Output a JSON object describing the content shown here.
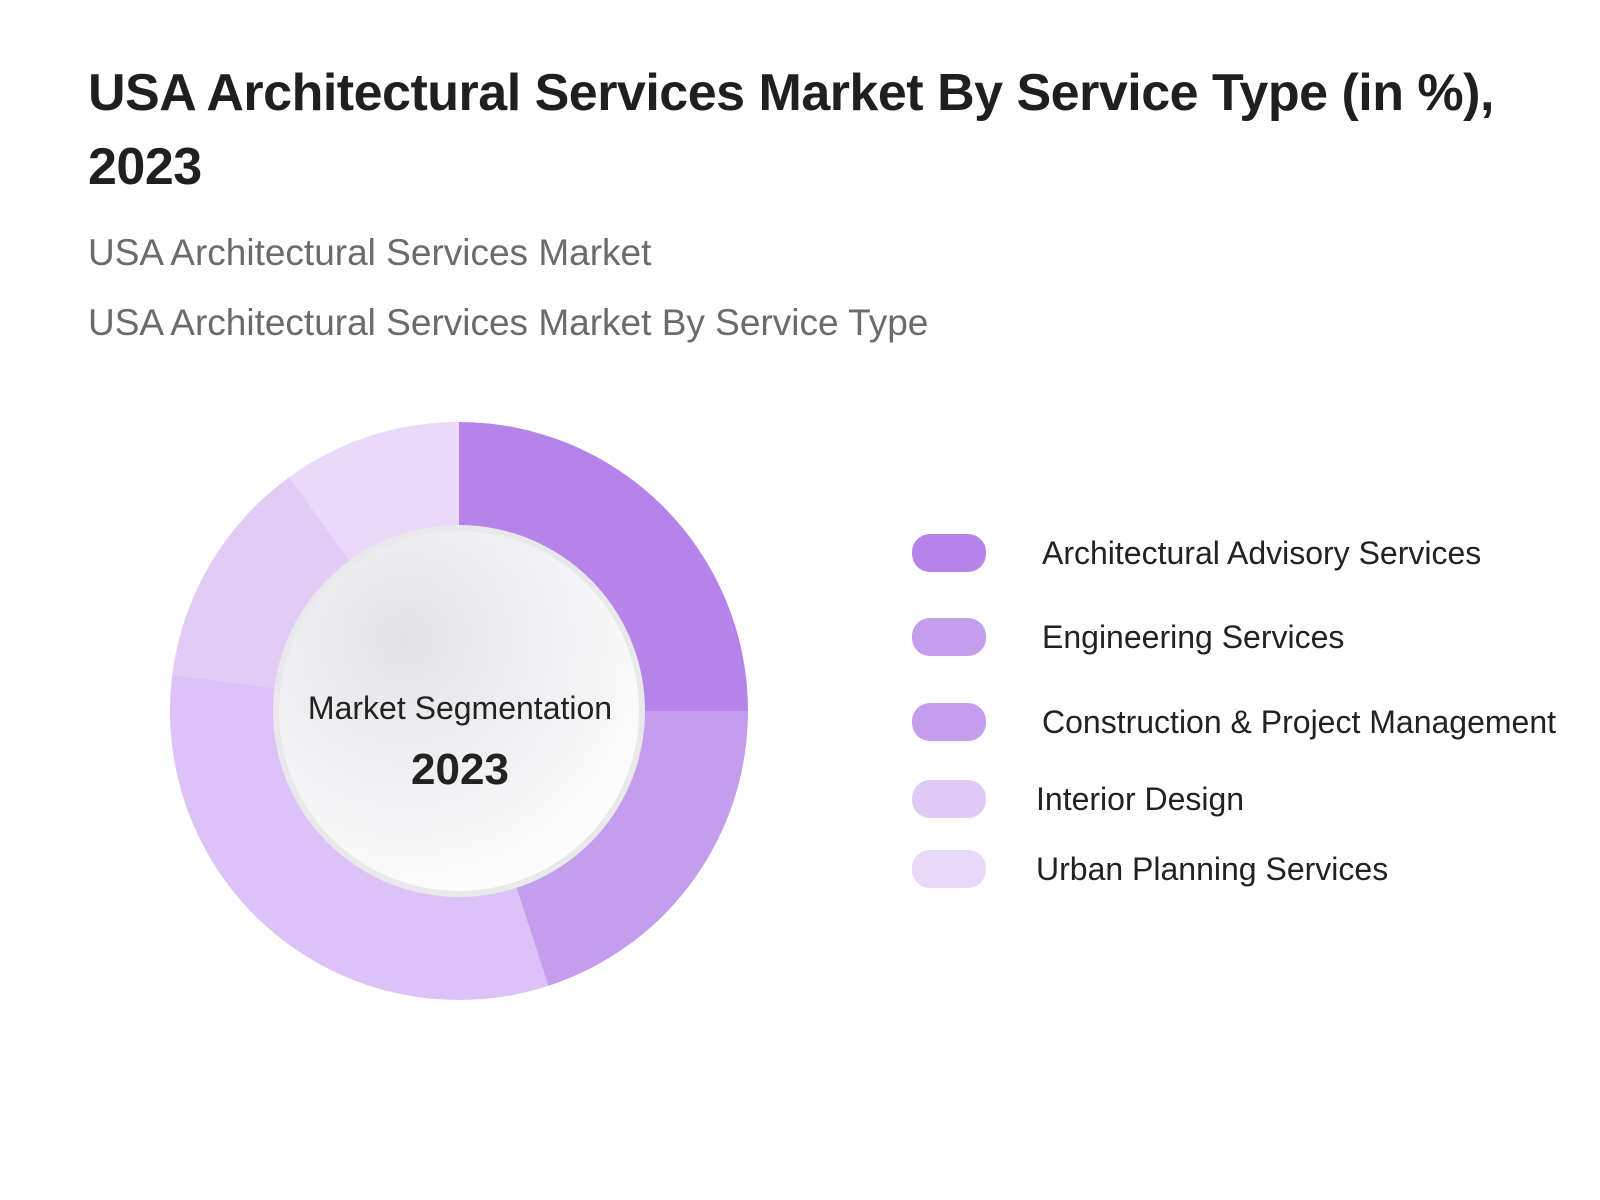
{
  "header": {
    "title": "USA Architectural Services Market By Service Type (in %), 2023",
    "subtitle_1": "USA Architectural Services Market",
    "subtitle_2": "USA Architectural Services Market By Service Type"
  },
  "center": {
    "label": "Market Segmentation",
    "year": "2023"
  },
  "legend": [
    {
      "label": "Architectural Advisory Services",
      "color": "#b583ea"
    },
    {
      "label": "Engineering Services",
      "color": "#c59ded"
    },
    {
      "label": "Construction & Project Management",
      "color": "#c59ded"
    },
    {
      "label": "Interior Design",
      "color": "#dfc9f5"
    },
    {
      "label": "Urban Planning Services",
      "color": "#e8d8f9"
    }
  ],
  "chart_data": {
    "type": "pie",
    "subtype": "donut",
    "title": "USA Architectural Services Market By Service Type (in %), 2023",
    "subtitle": [
      "USA Architectural Services Market",
      "USA Architectural Services Market By Service Type"
    ],
    "center_text": [
      "Market Segmentation",
      "2023"
    ],
    "categories": [
      "Architectural Advisory Services",
      "Engineering Services",
      "Construction & Project Management",
      "Interior Design",
      "Urban Planning Services"
    ],
    "values": [
      25,
      20,
      32,
      13,
      10
    ],
    "segment_colors": [
      "#b583ea",
      "#c59ded",
      "#dcc2f6",
      "#e2ccf6",
      "#ead9fa"
    ],
    "unit": "%",
    "legend_position": "right",
    "data_labels_shown": false
  }
}
